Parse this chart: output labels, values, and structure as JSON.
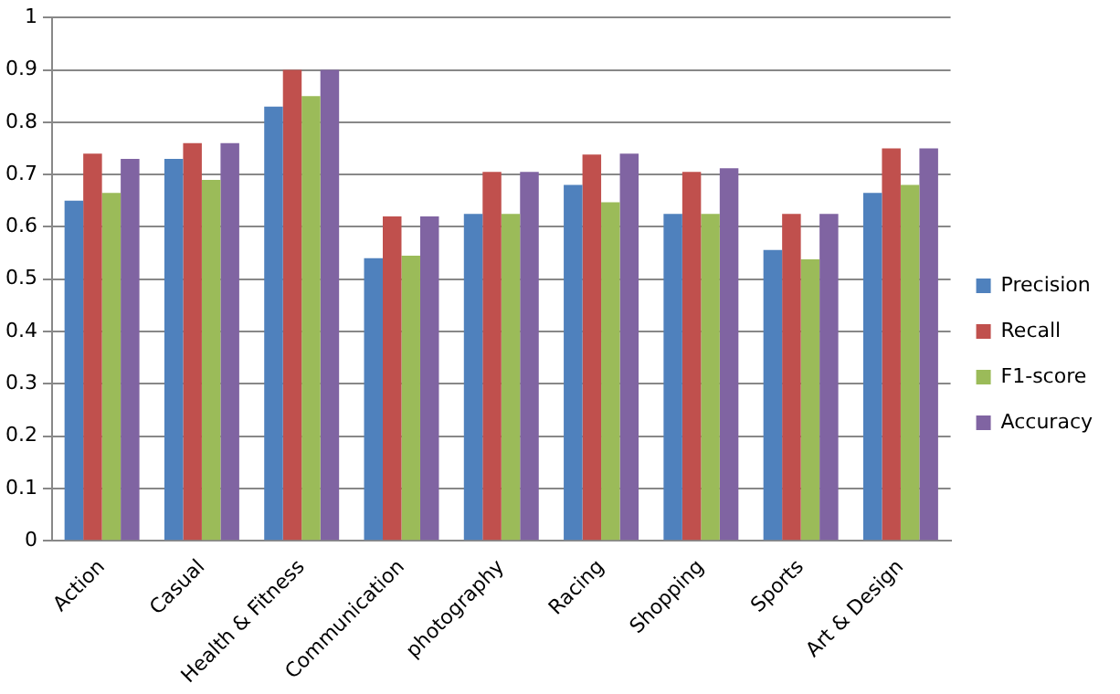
{
  "chart_data": {
    "type": "bar",
    "categories": [
      "Action",
      "Casual",
      "Health & Fitness",
      "Communication",
      "photography",
      "Racing",
      "Shopping",
      "Sports",
      "Art & Design"
    ],
    "series": [
      {
        "name": "Precision",
        "color": "#4f81bd",
        "values": [
          0.65,
          0.73,
          0.83,
          0.54,
          0.625,
          0.68,
          0.625,
          0.556,
          0.665
        ]
      },
      {
        "name": "Recall",
        "color": "#c0504d",
        "values": [
          0.74,
          0.76,
          0.9,
          0.62,
          0.705,
          0.738,
          0.705,
          0.625,
          0.75
        ]
      },
      {
        "name": "F1-score",
        "color": "#9bbb59",
        "values": [
          0.665,
          0.69,
          0.85,
          0.545,
          0.625,
          0.647,
          0.625,
          0.538,
          0.68
        ]
      },
      {
        "name": "Accuracy",
        "color": "#8064a2",
        "values": [
          0.73,
          0.76,
          0.9,
          0.62,
          0.705,
          0.74,
          0.712,
          0.625,
          0.75
        ]
      }
    ],
    "ylim": [
      0,
      1
    ],
    "yticks": [
      0,
      0.1,
      0.2,
      0.3,
      0.4,
      0.5,
      0.6,
      0.7,
      0.8,
      0.9,
      1
    ],
    "grid": "y",
    "legend": "right"
  }
}
